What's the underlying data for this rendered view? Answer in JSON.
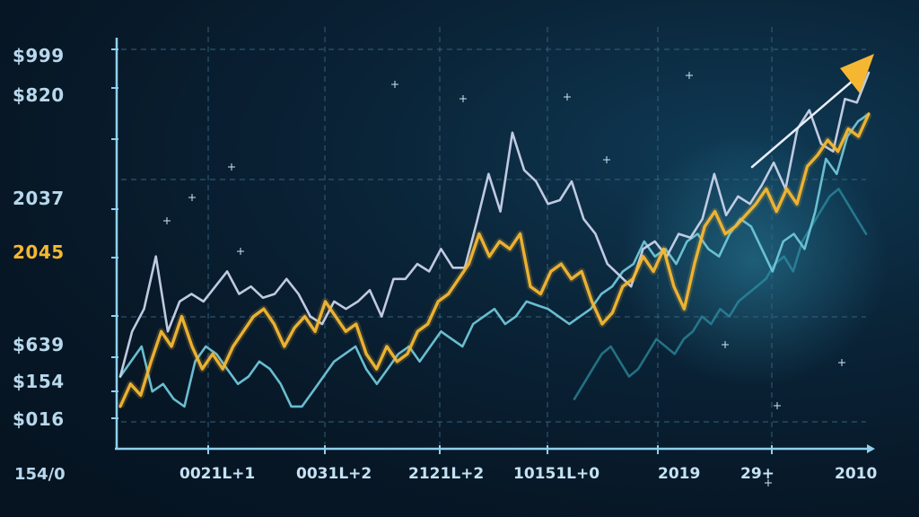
{
  "colors": {
    "accent": "#f5b731",
    "axis": "#8fd0ee",
    "grid": "#3a6680",
    "label": "#b8d8ec",
    "series_white": "#c9d3ea",
    "series_teal": "#6fc6d8",
    "series_dark_teal": "#2f93a6"
  },
  "chart_data": {
    "type": "line",
    "y_tick_labels": [
      {
        "text": "$999",
        "color": "#b8d8ec"
      },
      {
        "text": "$820",
        "color": "#b8d8ec"
      },
      {
        "text": "2037",
        "color": "#b8d8ec"
      },
      {
        "text": "2045",
        "color": "#f5b731"
      },
      {
        "text": "$639",
        "color": "#b8d8ec"
      },
      {
        "text": "$154",
        "color": "#b8d8ec"
      },
      {
        "text": "$016",
        "color": "#b8d8ec"
      }
    ],
    "corner_label": "154/0",
    "x_tick_labels": [
      "0021L+1",
      "0031L+2",
      "2121L+2",
      "10151L+0",
      "2019",
      "29+",
      "2010"
    ],
    "ylim": [
      0,
      100
    ],
    "grid": true,
    "trend_arrow": {
      "color": "#e6eef6",
      "head_color": "#f5b731"
    },
    "series": [
      {
        "color": "#c9d3ea",
        "values": [
          14,
          26,
          32,
          46,
          26,
          34,
          36,
          34,
          38,
          42,
          36,
          38,
          35,
          36,
          40,
          36,
          30,
          28,
          34,
          32,
          34,
          37,
          30,
          40,
          40,
          44,
          42,
          48,
          43,
          43,
          55,
          68,
          58,
          79,
          69,
          66,
          60,
          61,
          66,
          56,
          52,
          44,
          41,
          38,
          48,
          50,
          46,
          52,
          51,
          56,
          68,
          57,
          62,
          60,
          65,
          71,
          64,
          80,
          85,
          76,
          74,
          88,
          87,
          95
        ]
      },
      {
        "color": "#f5b731",
        "values": [
          6,
          12,
          9,
          18,
          26,
          22,
          30,
          22,
          16,
          20,
          16,
          22,
          26,
          30,
          32,
          28,
          22,
          27,
          30,
          26,
          34,
          30,
          26,
          28,
          20,
          16,
          22,
          18,
          20,
          26,
          28,
          34,
          36,
          40,
          44,
          52,
          46,
          50,
          48,
          52,
          38,
          36,
          42,
          44,
          40,
          42,
          34,
          28,
          31,
          38,
          40,
          46,
          42,
          48,
          38,
          32,
          44,
          54,
          58,
          52,
          54,
          57,
          60,
          64,
          58,
          64,
          60,
          70,
          73,
          77,
          74,
          80,
          78,
          84
        ]
      },
      {
        "color": "#6fc6d8",
        "values": [
          14,
          18,
          22,
          10,
          12,
          8,
          6,
          18,
          22,
          20,
          16,
          12,
          14,
          18,
          16,
          12,
          6,
          6,
          10,
          14,
          18,
          20,
          22,
          16,
          12,
          16,
          20,
          22,
          18,
          22,
          26,
          24,
          22,
          28,
          30,
          32,
          28,
          30,
          34,
          33,
          32,
          30,
          28,
          30,
          32,
          36,
          38,
          42,
          44,
          50,
          46,
          48,
          44,
          50,
          52,
          48,
          46,
          52,
          56,
          54,
          48,
          42,
          50,
          52,
          48,
          58,
          72,
          68,
          78,
          82,
          84
        ]
      },
      {
        "color": "#2f93a6",
        "values": [
          8,
          12,
          16,
          20,
          22,
          18,
          14,
          16,
          20,
          24,
          22,
          20,
          24,
          26,
          30,
          28,
          32,
          30,
          34,
          36,
          38,
          40,
          44,
          46,
          42,
          50,
          54,
          58,
          62,
          64,
          60,
          56,
          52
        ]
      }
    ]
  }
}
